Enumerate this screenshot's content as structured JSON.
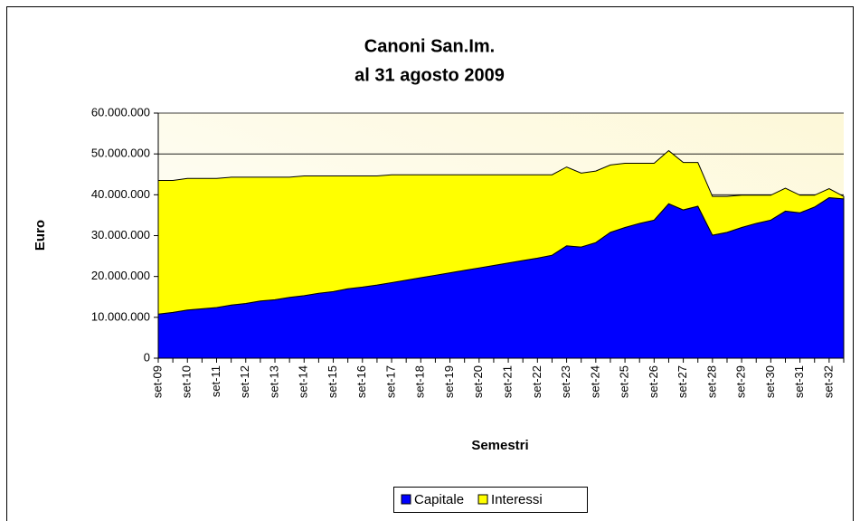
{
  "chart_data": {
    "type": "stacked_area",
    "title": [
      "Canoni San.Im.",
      "al 31 agosto 2009"
    ],
    "x_label": "Semestri",
    "y_label": "Euro",
    "categories": [
      "set-09",
      null,
      "set-10",
      null,
      "set-11",
      null,
      "set-12",
      null,
      "set-13",
      null,
      "set-14",
      null,
      "set-15",
      null,
      "set-16",
      null,
      "set-17",
      null,
      "set-18",
      null,
      "set-19",
      null,
      "set-20",
      null,
      "set-21",
      null,
      "set-22",
      null,
      "set-23",
      null,
      "set-24",
      null,
      "set-25",
      null,
      "set-26",
      null,
      "set-27",
      null,
      "set-28",
      null,
      "set-29",
      null,
      "set-30",
      null,
      "set-31",
      null,
      "set-32",
      null
    ],
    "series": [
      {
        "name": "Capitale",
        "color": "#0000ff",
        "values": [
          10800000,
          11200000,
          11800000,
          12100000,
          12400000,
          13000000,
          13400000,
          14000000,
          14300000,
          14900000,
          15300000,
          15900000,
          16300000,
          17000000,
          17400000,
          17900000,
          18500000,
          19100000,
          19700000,
          20300000,
          20900000,
          21500000,
          22100000,
          22700000,
          23300000,
          23900000,
          24500000,
          25200000,
          27500000,
          27200000,
          28300000,
          30800000,
          32000000,
          33000000,
          33800000,
          37800000,
          36300000,
          37200000,
          30100000,
          30800000,
          32000000,
          33000000,
          33800000,
          36000000,
          35600000,
          37000000,
          39300000,
          39000000
        ]
      },
      {
        "name": "Interessi",
        "color": "#ffff00",
        "values": [
          32700000,
          32300000,
          32200000,
          31900000,
          31600000,
          31300000,
          30900000,
          30300000,
          30000000,
          29400000,
          29300000,
          28700000,
          28300000,
          27600000,
          27200000,
          26700000,
          26400000,
          25800000,
          25200000,
          24600000,
          24000000,
          23400000,
          22800000,
          22200000,
          21600000,
          21000000,
          20400000,
          19700000,
          19300000,
          18100000,
          17500000,
          16500000,
          15700000,
          14700000,
          13900000,
          13000000,
          11600000,
          10700000,
          9500000,
          8800000,
          7900000,
          6900000,
          6100000,
          5600000,
          4300000,
          2900000,
          2200000,
          600000
        ]
      }
    ],
    "ylim": [
      0,
      60000000
    ],
    "yticks": [
      0,
      {
        "value": 10000000,
        "label": "10.000.000"
      },
      {
        "value": 20000000,
        "label": "20.000.000"
      },
      {
        "value": 30000000,
        "label": "30.000.000"
      },
      {
        "value": 40000000,
        "label": "40.000.000"
      },
      {
        "value": 50000000,
        "label": "50.000.000"
      },
      {
        "value": 60000000,
        "label": "60.000.000"
      }
    ],
    "grid": true,
    "legend": "bottom"
  }
}
